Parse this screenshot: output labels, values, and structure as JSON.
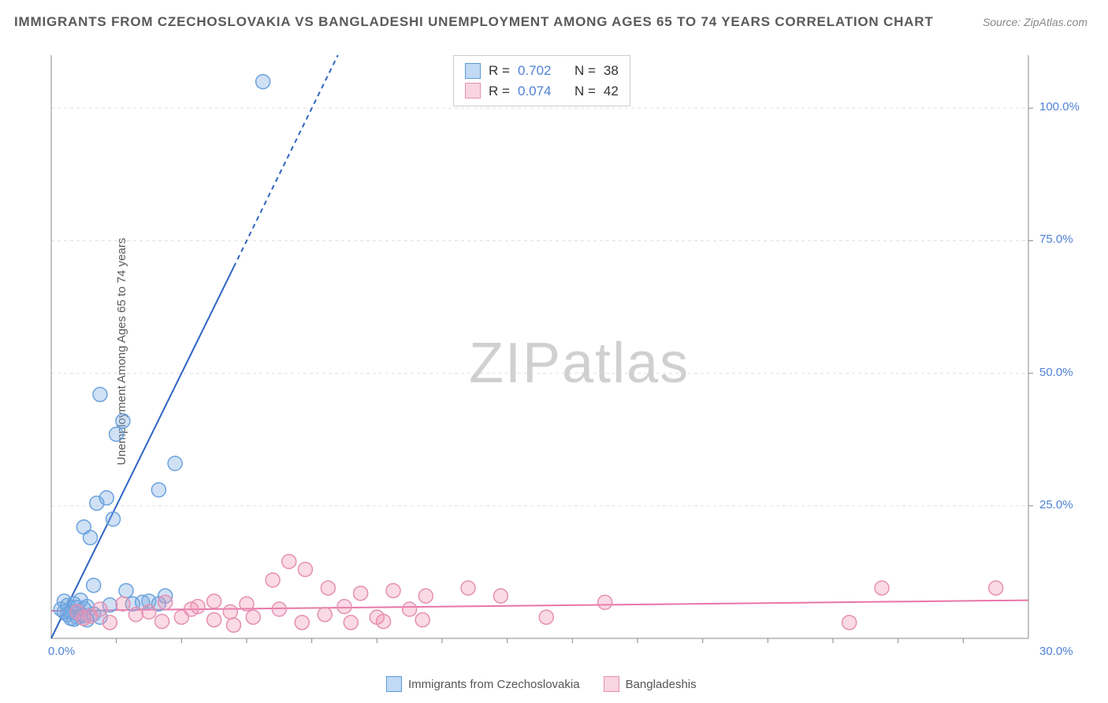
{
  "title": "IMMIGRANTS FROM CZECHOSLOVAKIA VS BANGLADESHI UNEMPLOYMENT AMONG AGES 65 TO 74 YEARS CORRELATION CHART",
  "source_prefix": "Source: ",
  "source_name": "ZipAtlas.com",
  "y_axis_label": "Unemployment Among Ages 65 to 74 years",
  "watermark": "ZIPatlas",
  "chart": {
    "type": "scatter",
    "xlim": [
      0,
      30
    ],
    "ylim": [
      0,
      110
    ],
    "x_ticks": [
      0,
      30
    ],
    "x_tick_labels": [
      "0.0%",
      "30.0%"
    ],
    "x_minor_ticks": [
      2,
      4,
      6,
      8,
      10,
      12,
      14,
      16,
      18,
      20,
      22,
      24,
      26,
      28
    ],
    "y_ticks": [
      25,
      50,
      75,
      100
    ],
    "y_tick_labels": [
      "25.0%",
      "50.0%",
      "75.0%",
      "100.0%"
    ],
    "background_color": "#ffffff",
    "grid_color": "#e0e0e0",
    "axis_color": "#888888",
    "marker_radius": 9,
    "marker_stroke_width": 1.5,
    "line_width": 2
  },
  "series": [
    {
      "name": "Immigrants from Czechoslovakia",
      "color_fill": "rgba(120,170,225,0.35)",
      "color_stroke": "#6aa2de",
      "line_color": "#2f64c4",
      "R": "0.702",
      "N": "38",
      "trend": {
        "x1": 0,
        "y1": 0,
        "x2": 8.8,
        "y2": 110,
        "solid_until_y": 70
      },
      "points": [
        [
          0.3,
          5.5
        ],
        [
          0.4,
          7.0
        ],
        [
          0.5,
          6.2
        ],
        [
          0.6,
          5.0
        ],
        [
          0.7,
          6.5
        ],
        [
          0.8,
          5.8
        ],
        [
          0.9,
          7.2
        ],
        [
          1.0,
          5.6
        ],
        [
          1.0,
          21.0
        ],
        [
          1.1,
          6.0
        ],
        [
          1.2,
          19.0
        ],
        [
          1.3,
          10.0
        ],
        [
          1.4,
          25.5
        ],
        [
          1.5,
          46.0
        ],
        [
          1.7,
          26.5
        ],
        [
          1.8,
          6.3
        ],
        [
          1.9,
          22.5
        ],
        [
          2.0,
          38.5
        ],
        [
          2.2,
          41.0
        ],
        [
          2.3,
          9.0
        ],
        [
          2.5,
          6.5
        ],
        [
          3.0,
          7.0
        ],
        [
          3.3,
          6.5
        ],
        [
          3.3,
          28.0
        ],
        [
          3.5,
          8.0
        ],
        [
          3.8,
          33.0
        ],
        [
          0.5,
          4.5
        ],
        [
          0.6,
          3.8
        ],
        [
          0.8,
          4.0
        ],
        [
          0.9,
          4.2
        ],
        [
          1.1,
          3.5
        ],
        [
          1.3,
          4.6
        ],
        [
          1.5,
          4.0
        ],
        [
          0.4,
          5.0
        ],
        [
          0.7,
          3.6
        ],
        [
          1.0,
          4.3
        ],
        [
          6.5,
          105.0
        ],
        [
          2.8,
          6.8
        ]
      ]
    },
    {
      "name": "Bangladeshis",
      "color_fill": "rgba(240,150,180,0.35)",
      "color_stroke": "#e590b0",
      "line_color": "#e876a8",
      "R": "0.074",
      "N": "42",
      "trend": {
        "x1": 0,
        "y1": 5.2,
        "x2": 30,
        "y2": 7.2
      },
      "points": [
        [
          0.8,
          5.0
        ],
        [
          1.2,
          4.2
        ],
        [
          1.5,
          5.5
        ],
        [
          1.8,
          3.0
        ],
        [
          2.2,
          6.5
        ],
        [
          2.6,
          4.5
        ],
        [
          3.0,
          5.0
        ],
        [
          3.4,
          3.2
        ],
        [
          3.5,
          6.8
        ],
        [
          4.0,
          4.0
        ],
        [
          4.3,
          5.5
        ],
        [
          4.5,
          6.0
        ],
        [
          5.0,
          7.0
        ],
        [
          5.0,
          3.5
        ],
        [
          5.5,
          5.0
        ],
        [
          5.6,
          2.5
        ],
        [
          6.0,
          6.5
        ],
        [
          6.2,
          4.0
        ],
        [
          6.8,
          11.0
        ],
        [
          7.0,
          5.5
        ],
        [
          7.3,
          14.5
        ],
        [
          7.7,
          3.0
        ],
        [
          7.8,
          13.0
        ],
        [
          8.4,
          4.5
        ],
        [
          8.5,
          9.5
        ],
        [
          9.0,
          6.0
        ],
        [
          9.2,
          3.0
        ],
        [
          9.5,
          8.5
        ],
        [
          10.0,
          4.0
        ],
        [
          10.2,
          3.2
        ],
        [
          10.5,
          9.0
        ],
        [
          11.0,
          5.5
        ],
        [
          11.4,
          3.5
        ],
        [
          11.5,
          8.0
        ],
        [
          12.8,
          9.5
        ],
        [
          13.8,
          8.0
        ],
        [
          15.2,
          4.0
        ],
        [
          17.0,
          6.8
        ],
        [
          24.5,
          3.0
        ],
        [
          25.5,
          9.5
        ],
        [
          29.0,
          9.5
        ],
        [
          1.0,
          3.8
        ]
      ]
    }
  ],
  "legend_bottom": {
    "items": [
      "Immigrants from Czechoslovakia",
      "Bangladeshis"
    ]
  },
  "corr_box": {
    "r_label": "R =",
    "n_label": "N ="
  }
}
